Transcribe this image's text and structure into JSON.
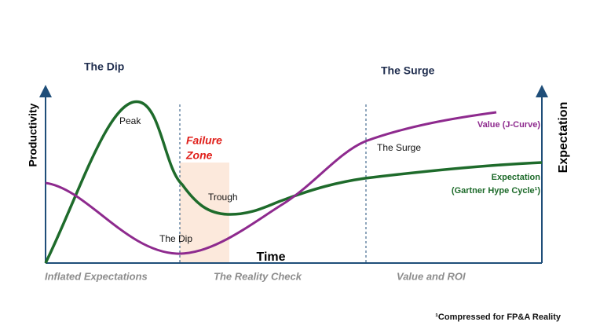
{
  "headings": [
    "The Dip",
    "The Surge"
  ],
  "axes": {
    "y_left": "Productivity",
    "y_right": "Expectation",
    "x": "Time"
  },
  "annotations": {
    "peak": "Peak",
    "failure_zone": [
      "Failure",
      "Zone"
    ],
    "trough": "Trough",
    "surge": "The Surge",
    "dip": "The Dip"
  },
  "legend": {
    "value": "Value (J-Curve)",
    "expectation": [
      "Expectation",
      "(Gartner Hype Cycle¹)"
    ]
  },
  "phases": [
    "Inflated Expectations",
    "The Reality Check",
    "Value and ROI"
  ],
  "footnote": "¹Compressed for FP&A Reality"
}
